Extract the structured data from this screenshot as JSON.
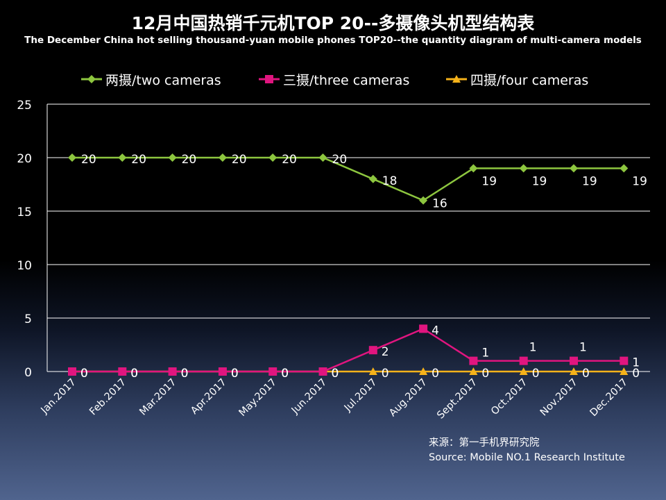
{
  "title_zh": "12月中国热销千元机TOP 20--多摄像头机型结构表",
  "title_en": "The December China hot selling thousand-yuan mobile phones TOP20--the quantity diagram of multi-camera models",
  "source": {
    "line_zh": "来源：第一手机界研究院",
    "line_en": "Source: Mobile NO.1 Research Institute"
  },
  "chart_data": {
    "type": "line",
    "title": "",
    "xlabel": "",
    "ylabel": "",
    "ylim": [
      0,
      25
    ],
    "yticks": [
      0,
      5,
      10,
      15,
      20,
      25
    ],
    "grid": "horizontal",
    "legend_position": "top",
    "categories": [
      "Jan.2017",
      "Feb.2017",
      "Mar.2017",
      "Apr.2017",
      "May.2017",
      "Jun.2017",
      "Jul.2017",
      "Aug.2017",
      "Sept.2017",
      "Oct.2017",
      "Nov.2017",
      "Dec.2017"
    ],
    "series": [
      {
        "name": "两摄/two cameras",
        "color": "#8dc63f",
        "marker": "diamond",
        "values": [
          20,
          20,
          20,
          20,
          20,
          20,
          18,
          16,
          19,
          19,
          19,
          19
        ]
      },
      {
        "name": "三摄/three cameras",
        "color": "#e0157f",
        "marker": "square",
        "values": [
          0,
          0,
          0,
          0,
          0,
          0,
          2,
          4,
          1,
          1,
          1,
          1
        ]
      },
      {
        "name": "四摄/four cameras",
        "color": "#f5b21a",
        "marker": "triangle",
        "values": [
          0,
          0,
          0,
          0,
          0,
          0,
          0,
          0,
          0,
          0,
          0,
          0
        ]
      }
    ]
  }
}
